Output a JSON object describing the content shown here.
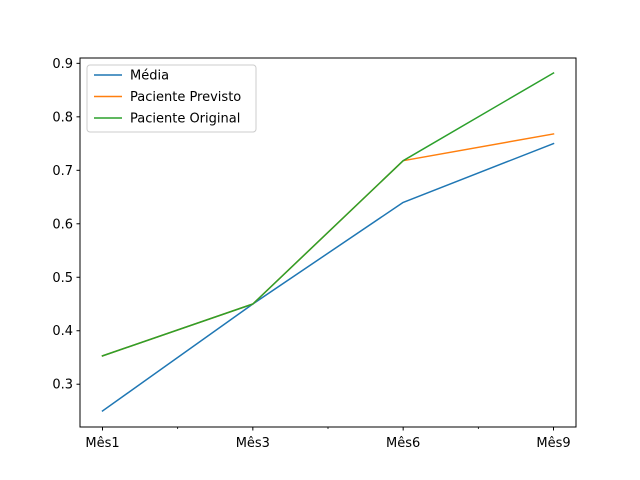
{
  "chart_data": {
    "type": "line",
    "title": "",
    "xlabel": "",
    "ylabel": "",
    "categories": [
      "Mês1",
      "Mês3",
      "Mês6",
      "Mês9"
    ],
    "ylim": [
      0.22,
      0.91
    ],
    "yticks": [
      "0.3",
      "0.4",
      "0.5",
      "0.6",
      "0.7",
      "0.8",
      "0.9"
    ],
    "grid": false,
    "legend_position": "top-left",
    "series": [
      {
        "name": "Média",
        "color": "#1f77b4",
        "values": [
          0.25,
          0.45,
          0.64,
          0.75
        ]
      },
      {
        "name": "Paciente Previsto",
        "color": "#ff7f0e",
        "values": [
          0.353,
          0.45,
          0.718,
          0.768
        ]
      },
      {
        "name": "Paciente Original",
        "color": "#2ca02c",
        "values": [
          0.353,
          0.45,
          0.718,
          0.882
        ]
      }
    ]
  }
}
